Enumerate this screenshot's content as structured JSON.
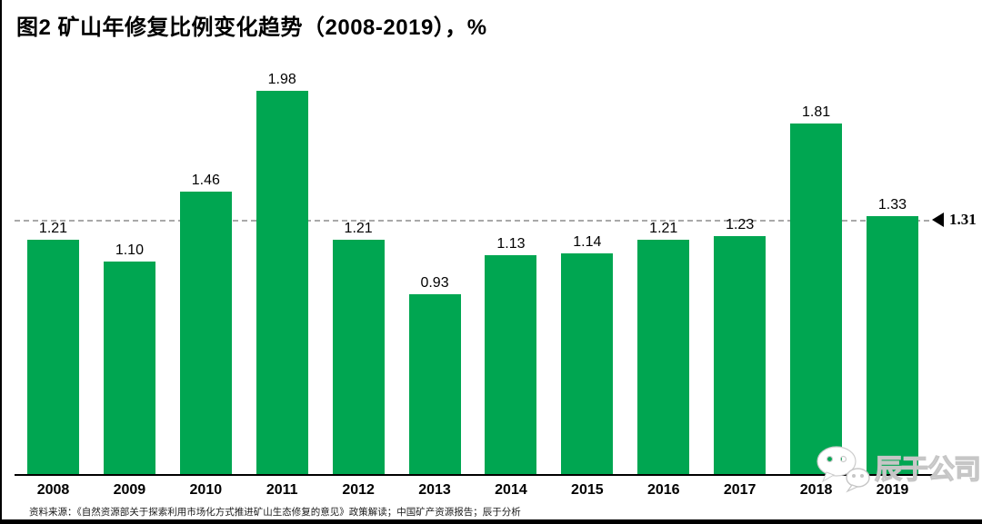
{
  "title": "图2 矿山年修复比例变化趋势（2008-2019），%",
  "source": "资料来源：《自然资源部关于探索利用市场化方式推进矿山生态修复的意见》政策解读；中国矿产资源报告；辰于分析",
  "watermark": {
    "text": "辰于公司",
    "icon": "wechat-icon"
  },
  "colors": {
    "bar": "#00a651",
    "reference_line": "#a9a9a9",
    "axis": "#000000",
    "text": "#000000",
    "watermark": "#c6c6c6"
  },
  "chart_data": {
    "type": "bar",
    "title": "图2 矿山年修复比例变化趋势（2008-2019），%",
    "xlabel": "",
    "ylabel": "",
    "categories": [
      "2008",
      "2009",
      "2010",
      "2011",
      "2012",
      "2013",
      "2014",
      "2015",
      "2016",
      "2017",
      "2018",
      "2019"
    ],
    "values": [
      1.21,
      1.1,
      1.46,
      1.98,
      1.21,
      0.93,
      1.13,
      1.14,
      1.21,
      1.23,
      1.81,
      1.33
    ],
    "value_labels": [
      "1.21",
      "1.10",
      "1.46",
      "1.98",
      "1.21",
      "0.93",
      "1.13",
      "1.14",
      "1.21",
      "1.23",
      "1.81",
      "1.33"
    ],
    "reference_line": {
      "value": 1.31,
      "label": "1.31",
      "style": "dashed",
      "marker": "left-triangle"
    },
    "ylim": [
      0,
      2.05
    ],
    "grid": false,
    "legend": false,
    "bar_color": "#00a651"
  }
}
